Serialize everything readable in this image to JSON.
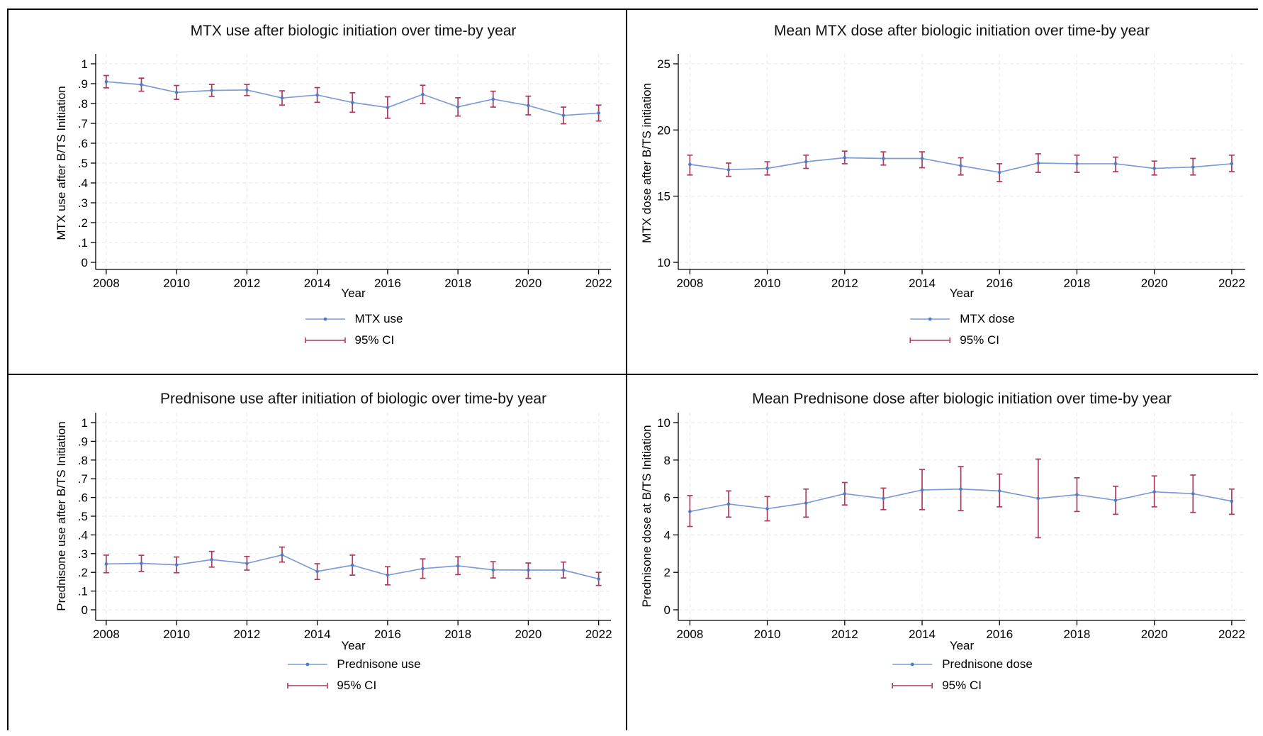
{
  "page": {
    "background": "#ffffff",
    "frame_color": "#000000"
  },
  "colors": {
    "line": "#7b9dd4",
    "marker": "#4d7cc9",
    "ci": "#ae3a5c",
    "grid": "#ececec",
    "axis": "#000000"
  },
  "chart_data": [
    {
      "type": "line",
      "title": "MTX use after biologic initiation over time-by year",
      "xlabel": "Year",
      "ylabel": "MTX use after B/TS Initiation",
      "legend_series": "MTX use",
      "legend_ci": "95% CI",
      "legend_position": "bottom",
      "grid": true,
      "x": [
        2008,
        2009,
        2010,
        2011,
        2012,
        2013,
        2014,
        2015,
        2016,
        2017,
        2018,
        2019,
        2020,
        2021,
        2022
      ],
      "series": [
        {
          "name": "MTX use",
          "values": [
            0.91,
            0.895,
            0.856,
            0.866,
            0.868,
            0.828,
            0.843,
            0.805,
            0.78,
            0.846,
            0.783,
            0.822,
            0.79,
            0.74,
            0.752
          ]
        }
      ],
      "ci_low": [
        0.879,
        0.862,
        0.821,
        0.836,
        0.84,
        0.792,
        0.806,
        0.756,
        0.726,
        0.8,
        0.737,
        0.782,
        0.743,
        0.698,
        0.712
      ],
      "ci_high": [
        0.941,
        0.928,
        0.891,
        0.896,
        0.896,
        0.864,
        0.88,
        0.854,
        0.834,
        0.892,
        0.829,
        0.862,
        0.837,
        0.782,
        0.792
      ],
      "ylim": [
        0,
        1
      ],
      "xlim": [
        2007.7,
        2022.35
      ],
      "xticks": [
        2008,
        2010,
        2012,
        2014,
        2016,
        2018,
        2020,
        2022
      ],
      "ytick_values": [
        0,
        0.1,
        0.2,
        0.3,
        0.4,
        0.5,
        0.6,
        0.7,
        0.8,
        0.9,
        1
      ],
      "ytick_labels": [
        "0",
        ".1",
        ".2",
        ".3",
        ".4",
        ".5",
        ".6",
        ".7",
        ".8",
        ".9",
        "1"
      ]
    },
    {
      "type": "line",
      "title": "Mean MTX dose after biologic initiation over time-by year",
      "xlabel": "Year",
      "ylabel": "MTX dose after B/TS initiation",
      "legend_series": "MTX dose",
      "legend_ci": "95% CI",
      "legend_position": "bottom",
      "grid": true,
      "x": [
        2008,
        2009,
        2010,
        2011,
        2012,
        2013,
        2014,
        2015,
        2016,
        2017,
        2018,
        2019,
        2020,
        2021,
        2022
      ],
      "series": [
        {
          "name": "MTX dose",
          "values": [
            17.4,
            17.0,
            17.1,
            17.6,
            17.9,
            17.85,
            17.85,
            17.3,
            16.8,
            17.5,
            17.45,
            17.45,
            17.1,
            17.2,
            17.45
          ]
        }
      ],
      "ci_low": [
        16.6,
        16.5,
        16.6,
        17.1,
        17.45,
        17.35,
        17.15,
        16.6,
        16.1,
        16.8,
        16.8,
        16.85,
        16.6,
        16.6,
        16.85
      ],
      "ci_high": [
        18.1,
        17.5,
        17.6,
        18.1,
        18.4,
        18.35,
        18.35,
        17.9,
        17.45,
        18.2,
        18.1,
        17.95,
        17.65,
        17.85,
        18.1
      ],
      "ylim": [
        10,
        25
      ],
      "xlim": [
        2007.7,
        2022.35
      ],
      "xticks": [
        2008,
        2010,
        2012,
        2014,
        2016,
        2018,
        2020,
        2022
      ],
      "ytick_values": [
        10,
        15,
        20,
        25
      ],
      "ytick_labels": [
        "10",
        "15",
        "20",
        "25"
      ]
    },
    {
      "type": "line",
      "title": "Prednisone use after initiation of biologic over time-by year",
      "xlabel": "Year",
      "ylabel": "Prednisone use after B/TS Initiation",
      "legend_series": "Prednisone use",
      "legend_ci": "95% CI",
      "legend_position": "bottom",
      "grid": true,
      "x": [
        2008,
        2009,
        2010,
        2011,
        2012,
        2013,
        2014,
        2015,
        2016,
        2017,
        2018,
        2019,
        2020,
        2021,
        2022
      ],
      "series": [
        {
          "name": "Prednisone use",
          "values": [
            0.245,
            0.248,
            0.24,
            0.268,
            0.248,
            0.293,
            0.205,
            0.238,
            0.185,
            0.22,
            0.235,
            0.213,
            0.212,
            0.212,
            0.165
          ]
        }
      ],
      "ci_low": [
        0.198,
        0.205,
        0.198,
        0.228,
        0.212,
        0.255,
        0.162,
        0.185,
        0.133,
        0.168,
        0.188,
        0.17,
        0.168,
        0.17,
        0.13
      ],
      "ci_high": [
        0.292,
        0.291,
        0.282,
        0.312,
        0.285,
        0.335,
        0.246,
        0.292,
        0.23,
        0.272,
        0.283,
        0.257,
        0.25,
        0.255,
        0.2
      ],
      "ylim": [
        0,
        1
      ],
      "xlim": [
        2007.7,
        2022.35
      ],
      "xticks": [
        2008,
        2010,
        2012,
        2014,
        2016,
        2018,
        2020,
        2022
      ],
      "ytick_values": [
        0,
        0.1,
        0.2,
        0.3,
        0.4,
        0.5,
        0.6,
        0.7,
        0.8,
        0.9,
        1
      ],
      "ytick_labels": [
        "0",
        ".1",
        ".2",
        ".3",
        ".4",
        ".5",
        ".6",
        ".7",
        ".8",
        ".9",
        "1"
      ]
    },
    {
      "type": "line",
      "title": "Mean Prednisone dose after biologic initiation over time-by year",
      "xlabel": "Year",
      "ylabel": "Prednisone dose at B/TS Initiation",
      "legend_series": "Prednisone dose",
      "legend_ci": "95% CI",
      "legend_position": "bottom",
      "grid": true,
      "x": [
        2008,
        2009,
        2010,
        2011,
        2012,
        2013,
        2014,
        2015,
        2016,
        2017,
        2018,
        2019,
        2020,
        2021,
        2022
      ],
      "series": [
        {
          "name": "Prednisone dose",
          "values": [
            5.25,
            5.65,
            5.4,
            5.7,
            6.2,
            5.95,
            6.4,
            6.45,
            6.35,
            5.95,
            6.15,
            5.85,
            6.3,
            6.2,
            5.8
          ]
        }
      ],
      "ci_low": [
        4.45,
        4.95,
        4.75,
        4.95,
        5.6,
        5.35,
        5.35,
        5.3,
        5.5,
        3.85,
        5.25,
        5.1,
        5.5,
        5.2,
        5.1
      ],
      "ci_high": [
        6.1,
        6.35,
        6.05,
        6.45,
        6.8,
        6.5,
        7.5,
        7.65,
        7.25,
        8.05,
        7.05,
        6.6,
        7.15,
        7.2,
        6.45
      ],
      "ylim": [
        0,
        10
      ],
      "xlim": [
        2007.7,
        2022.35
      ],
      "xticks": [
        2008,
        2010,
        2012,
        2014,
        2016,
        2018,
        2020,
        2022
      ],
      "ytick_values": [
        0,
        2,
        4,
        6,
        8,
        10
      ],
      "ytick_labels": [
        "0",
        "2",
        "4",
        "6",
        "8",
        "10"
      ]
    }
  ]
}
